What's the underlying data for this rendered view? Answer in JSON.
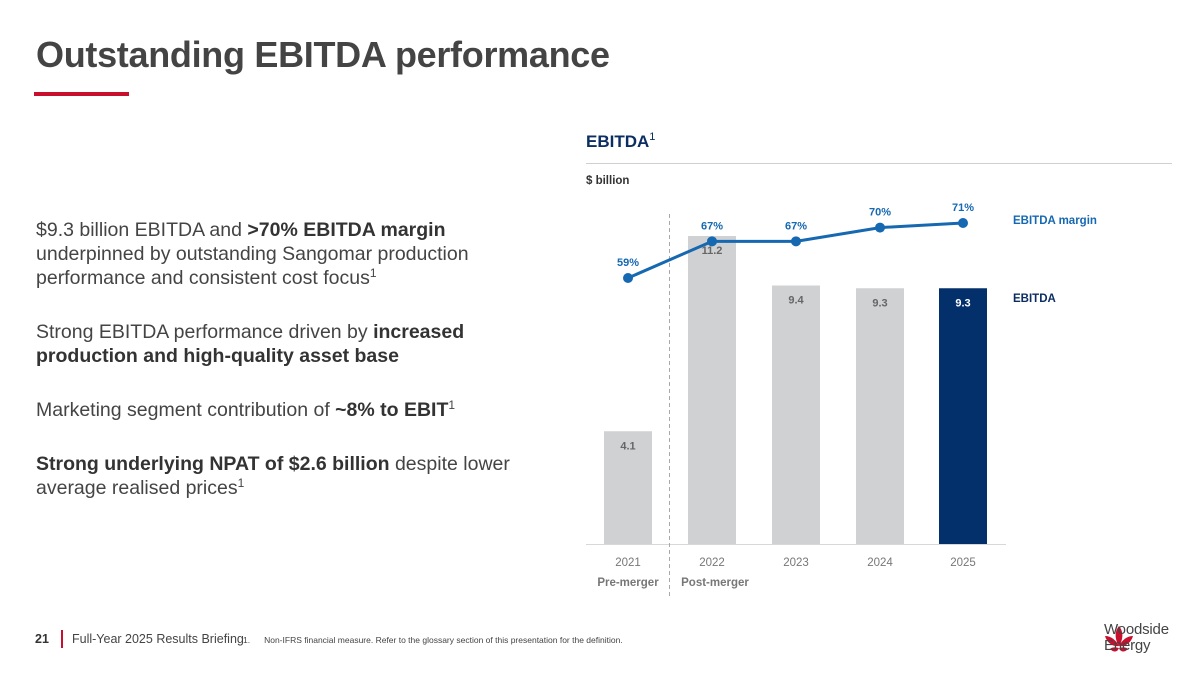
{
  "title": "Outstanding EBITDA performance",
  "bullets": [
    {
      "parts": [
        {
          "t": "$9.3 billion EBITDA and "
        },
        {
          "t": ">70% EBITDA margin",
          "b": true
        },
        {
          "t": " underpinned by outstanding Sangomar production performance and consistent cost focus"
        },
        {
          "t": "1",
          "sup": true
        }
      ]
    },
    {
      "parts": [
        {
          "t": "Strong EBITDA performance driven by "
        },
        {
          "t": "increased production and high-quality asset base",
          "b": true
        }
      ]
    },
    {
      "parts": [
        {
          "t": "Marketing segment contribution of "
        },
        {
          "t": "~8% to EBIT",
          "b": true
        },
        {
          "t": "1",
          "sup": true
        }
      ]
    },
    {
      "parts": [
        {
          "t": "Strong underlying NPAT of $2.6 billion",
          "b": true
        },
        {
          "t": " despite lower average realised prices"
        },
        {
          "t": "1",
          "sup": true
        }
      ]
    }
  ],
  "chart_header": {
    "title": "EBITDA",
    "title_sup": "1",
    "unit": "$ billion"
  },
  "chart_data": {
    "type": "bar",
    "categories": [
      "2021",
      "2022",
      "2023",
      "2024",
      "2025"
    ],
    "series": [
      {
        "name": "EBITDA",
        "type": "bar",
        "values": [
          4.1,
          11.2,
          9.4,
          9.3,
          9.3
        ],
        "labels": [
          "4.1",
          "11.2",
          "9.4",
          "9.3",
          "9.3"
        ]
      },
      {
        "name": "EBITDA margin",
        "type": "line",
        "values": [
          59,
          67,
          67,
          70,
          71
        ],
        "labels": [
          "59%",
          "67%",
          "67%",
          "70%",
          "71%"
        ]
      }
    ],
    "highlight_index": 4,
    "period_labels": [
      "Pre-merger",
      "Post-merger"
    ],
    "ylabel": "$ billion",
    "ylim": [
      0,
      12
    ],
    "margin_range": [
      0,
      80
    ],
    "legend": [
      "EBITDA margin",
      "EBITDA"
    ],
    "colors": {
      "bar": "#d0d1d3",
      "highlight": "#03306b",
      "line": "#1668b1",
      "bar_label": "#666666"
    }
  },
  "footer": {
    "page": "21",
    "title": "Full-Year 2025 Results Briefing",
    "footnote_num": "1.",
    "footnote": "Non-IFRS financial measure. Refer to the glossary section of this presentation for the definition."
  },
  "logo": {
    "line1": "Woodside",
    "line2": "Energy"
  },
  "colors": {
    "accent": "#c8102e",
    "navy": "#0b2d62"
  }
}
